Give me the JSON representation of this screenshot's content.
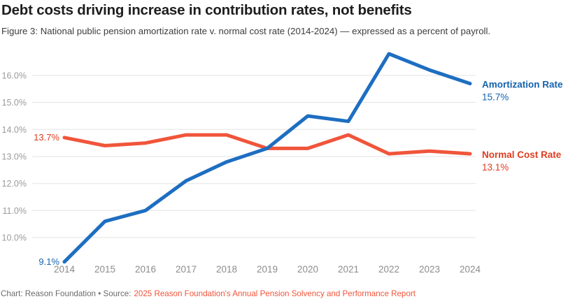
{
  "header": {
    "title": "Debt costs driving increase in contribution rates, not benefits",
    "subtitle": "Figure 3: National public pension amortization rate v. normal cost rate (2014-2024) — expressed as a percent of payroll."
  },
  "chart_data": {
    "type": "line",
    "x": [
      2014,
      2015,
      2016,
      2017,
      2018,
      2019,
      2020,
      2021,
      2022,
      2023,
      2024
    ],
    "series": [
      {
        "name": "Amortization Rate",
        "color": "#1d6ec1",
        "label_color": "#1563af",
        "values": [
          9.1,
          10.6,
          11.0,
          12.1,
          12.8,
          13.3,
          14.5,
          14.3,
          16.8,
          16.2,
          15.7
        ],
        "start_label": "9.1%",
        "end_label": "15.7%"
      },
      {
        "name": "Normal Cost Rate",
        "color": "#f0553a",
        "label_color": "#e03c20",
        "values": [
          13.7,
          13.4,
          13.5,
          13.8,
          13.8,
          13.3,
          13.3,
          13.8,
          13.1,
          13.2,
          13.1
        ],
        "start_label": "13.7%",
        "end_label": "13.1%"
      }
    ],
    "y_ticks": [
      "16.0%",
      "15.0%",
      "14.0%",
      "13.0%",
      "12.0%",
      "11.0%",
      "10.0%"
    ],
    "y_tick_values": [
      16,
      15,
      14,
      13,
      12,
      11,
      10
    ],
    "ylim": [
      9.1,
      16.8
    ],
    "grid": true,
    "legend_position": "right-of-line-ends",
    "xlabel": "",
    "ylabel": "percent of payroll",
    "title": "Debt costs driving increase in contribution rates, not benefits"
  },
  "footer": {
    "credit": "Chart: Reason Foundation • Source:",
    "source_link": "2025 Reason Foundation's Annual Pension Solvency and Performance Report"
  },
  "colors": {
    "amortization_blue_line": "#1d6ec1",
    "amortization_blue_text": "#1563af",
    "normal_cost_red_line": "#f0553a",
    "normal_cost_red_text": "#e03c20",
    "source_link": "#f0553a",
    "gridline": "#e3e3e3",
    "y_axis_label": "#9b9b9b",
    "x_axis_label": "#8c8c8c",
    "footer_text": "#6b6b6b",
    "title_text": "#1d1d1d",
    "subtitle_text": "#3c3c3c"
  }
}
